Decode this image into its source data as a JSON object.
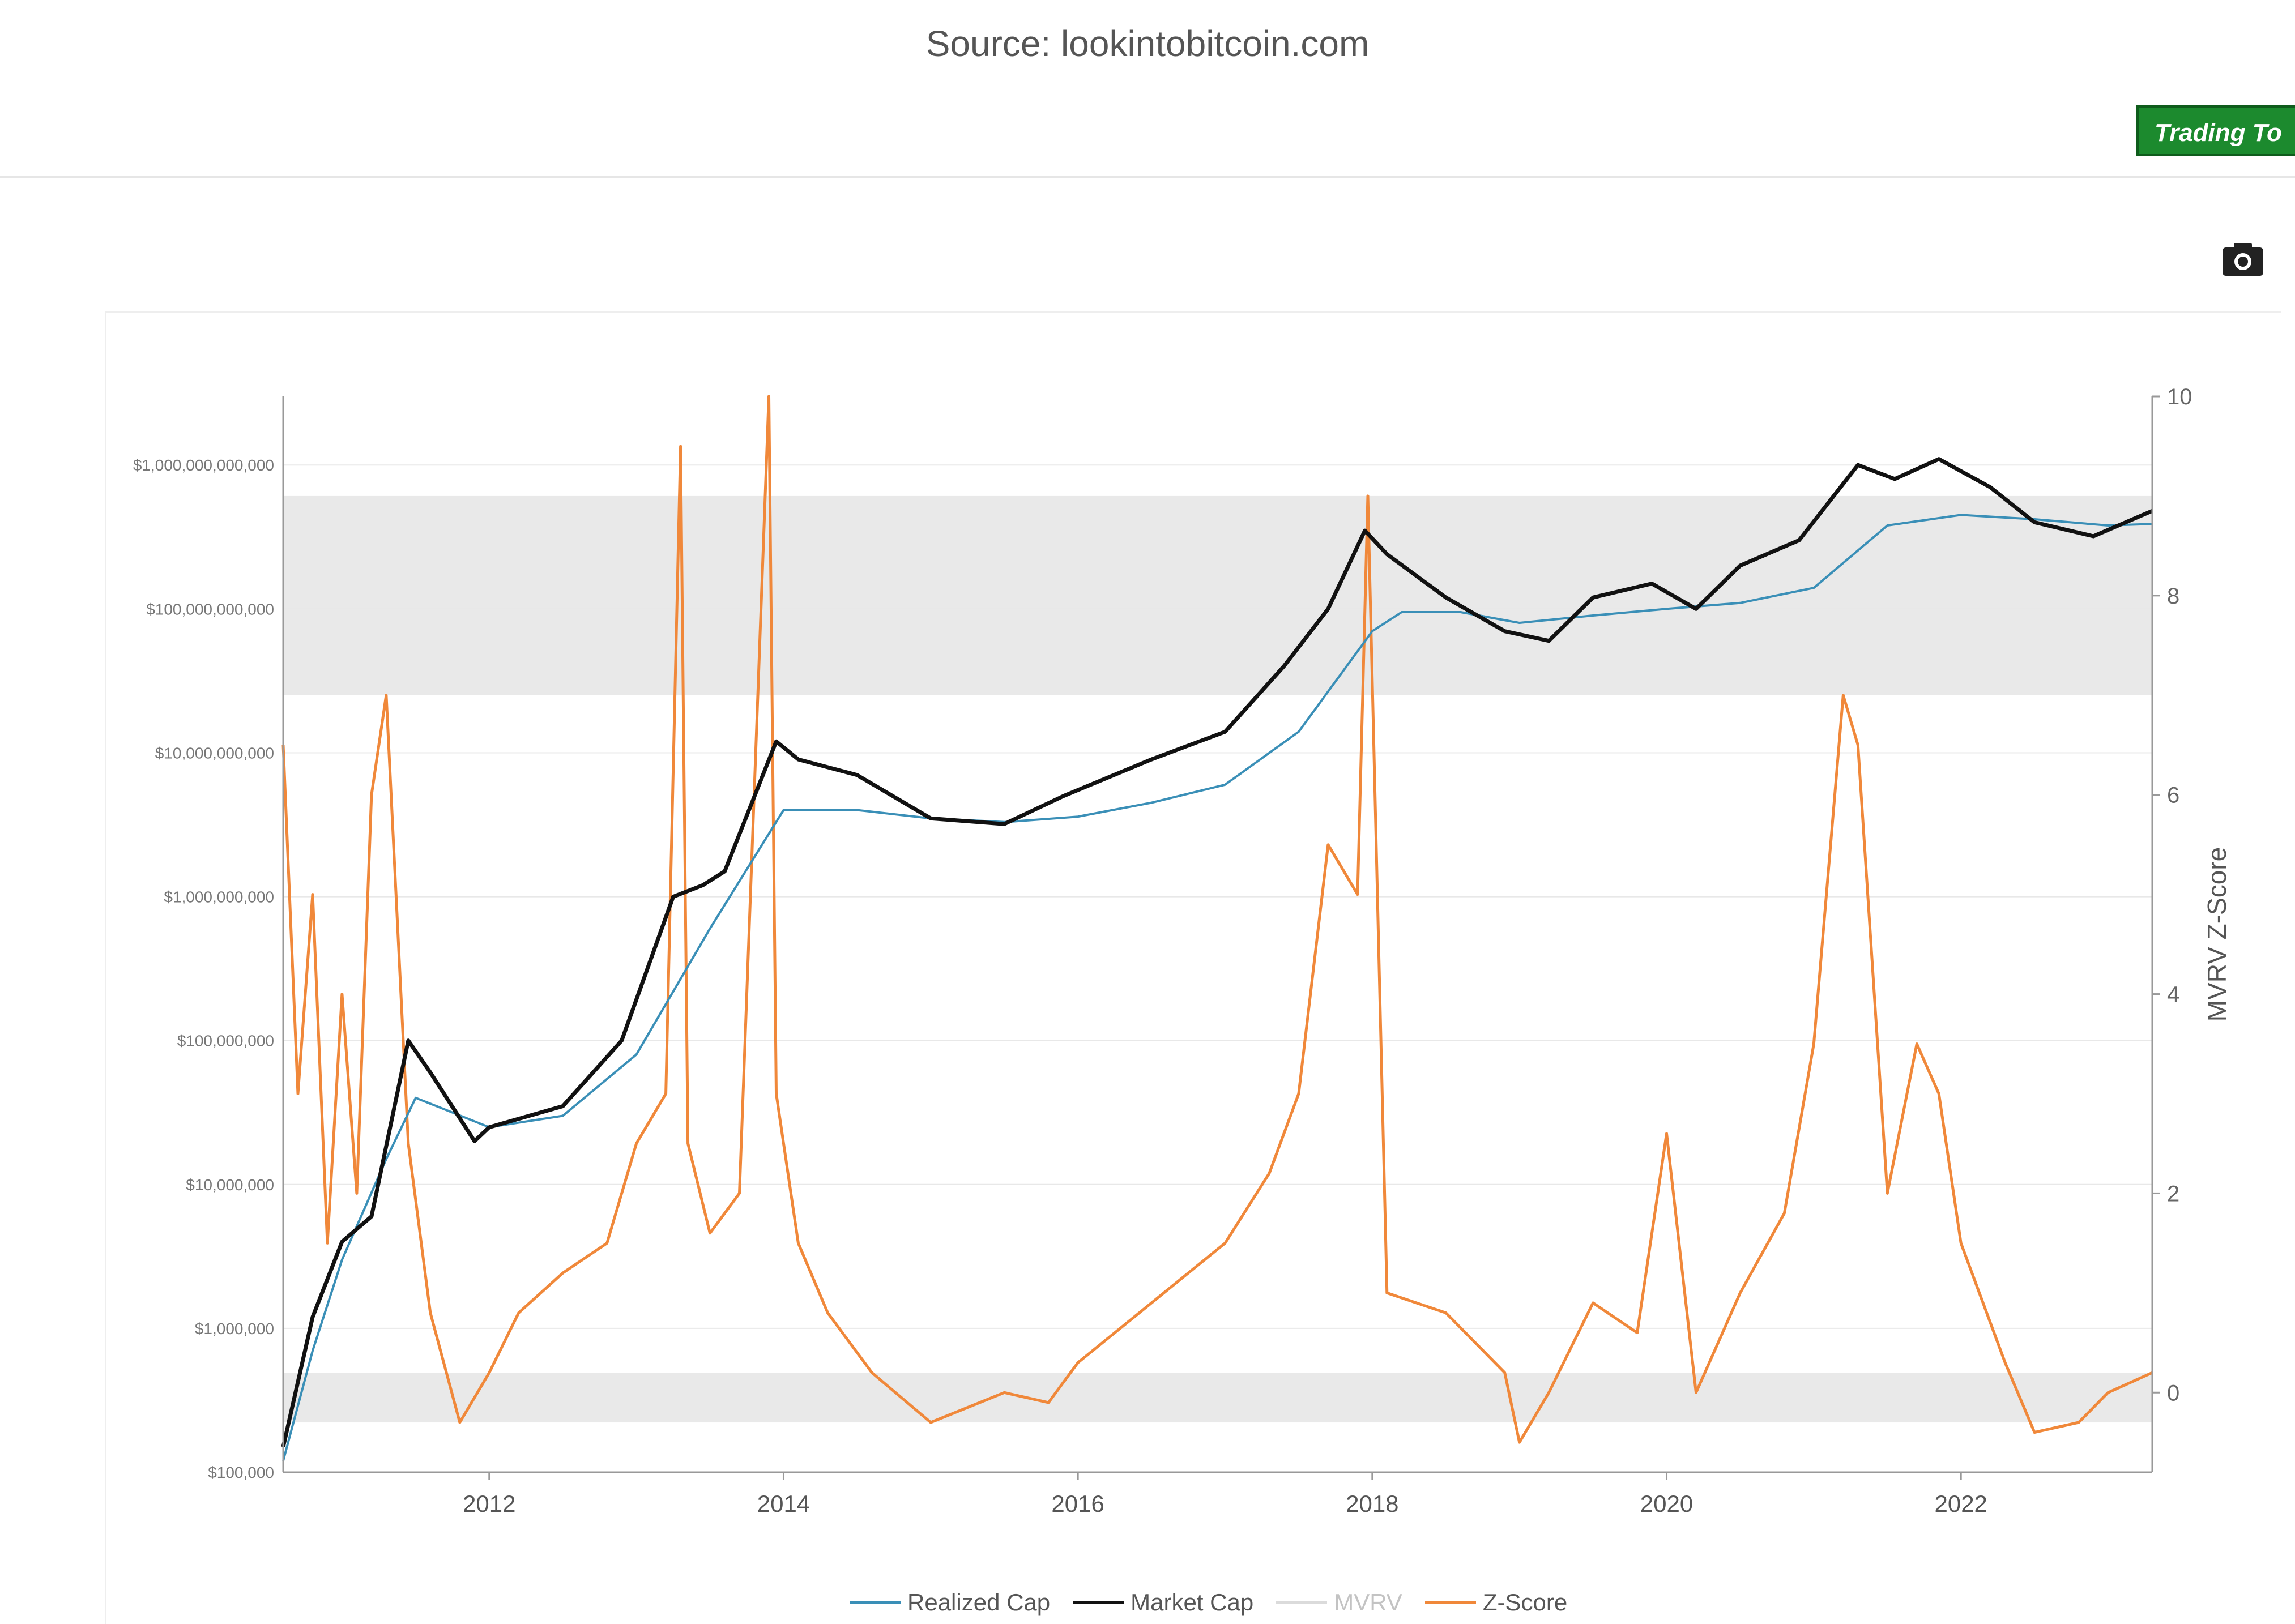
{
  "header": {
    "source_text": "Source: lookintobitcoin.com",
    "trading_button_label": "Trading To",
    "camera_icon": "camera-icon"
  },
  "colors": {
    "market_cap": "#111111",
    "realized_cap": "#3a8fb7",
    "z_score": "#f0883a",
    "band": "#e2e2e2"
  },
  "chart_data": {
    "type": "line",
    "title": "",
    "xlabel": "",
    "ylabel_left": "",
    "ylabel_right": "MVRV Z-Score",
    "x_ticks": [
      "2012",
      "2014",
      "2016",
      "2018",
      "2020",
      "2022"
    ],
    "xlim": [
      2010.6,
      2023.3
    ],
    "y_left_scale": "log",
    "y_left_ticks": [
      "$100,000",
      "$1,000,000",
      "$10,000,000",
      "$100,000,000",
      "$1,000,000,000",
      "$10,000,000,000",
      "$100,000,000,000",
      "$1,000,000,000,000"
    ],
    "y_left_range": [
      100000,
      3000000000000
    ],
    "y_right_ticks": [
      "0",
      "2",
      "4",
      "6",
      "8",
      "10"
    ],
    "y_right_range": [
      -0.8,
      10
    ],
    "bands": [
      {
        "axis": "right",
        "from": 7.0,
        "to": 9.0
      },
      {
        "axis": "right",
        "from": -0.3,
        "to": 0.2
      }
    ],
    "legend": [
      "Realized Cap",
      "Market Cap",
      "MVRV",
      "Z-Score"
    ],
    "legend_position": "bottom",
    "series": [
      {
        "name": "Market Cap",
        "x": [
          2010.6,
          2010.8,
          2011.0,
          2011.2,
          2011.45,
          2011.6,
          2011.9,
          2012.0,
          2012.5,
          2012.9,
          2013.25,
          2013.45,
          2013.6,
          2013.95,
          2014.1,
          2014.5,
          2015.0,
          2015.5,
          2015.9,
          2016.5,
          2017.0,
          2017.4,
          2017.7,
          2017.95,
          2018.1,
          2018.5,
          2018.9,
          2019.2,
          2019.5,
          2019.9,
          2020.2,
          2020.5,
          2020.9,
          2021.3,
          2021.55,
          2021.85,
          2022.2,
          2022.5,
          2022.9,
          2023.3
        ],
        "y": [
          150000,
          1200000,
          4000000,
          6000000,
          100000000,
          60000000,
          20000000,
          25000000,
          35000000,
          100000000,
          1000000000,
          1200000000,
          1500000000,
          12000000000,
          9000000000,
          7000000000,
          3500000000,
          3200000000,
          5000000000,
          9000000000,
          14000000000,
          40000000000,
          100000000000,
          350000000000,
          240000000000,
          120000000000,
          70000000000,
          60000000000,
          120000000000,
          150000000000,
          100000000000,
          200000000000,
          300000000000,
          1000000000000,
          800000000000,
          1100000000000,
          700000000000,
          400000000000,
          320000000000,
          480000000000
        ]
      },
      {
        "name": "Realized Cap",
        "x": [
          2010.6,
          2010.8,
          2011.0,
          2011.3,
          2011.5,
          2012.0,
          2012.5,
          2013.0,
          2013.5,
          2014.0,
          2014.5,
          2015.0,
          2015.5,
          2016.0,
          2016.5,
          2017.0,
          2017.5,
          2018.0,
          2018.2,
          2018.6,
          2019.0,
          2019.5,
          2020.0,
          2020.5,
          2021.0,
          2021.5,
          2022.0,
          2022.5,
          2023.0,
          2023.3
        ],
        "y": [
          120000,
          700000,
          3000000,
          15000000,
          40000000,
          25000000,
          30000000,
          80000000,
          600000000,
          4000000000,
          4000000000,
          3500000000,
          3300000000,
          3600000000,
          4500000000,
          6000000000,
          14000000000,
          70000000000,
          95000000000,
          95000000000,
          80000000000,
          90000000000,
          100000000000,
          110000000000,
          140000000000,
          380000000000,
          450000000000,
          420000000000,
          380000000000,
          390000000000
        ]
      },
      {
        "name": "Z-Score",
        "axis": "right",
        "x": [
          2010.6,
          2010.7,
          2010.8,
          2010.9,
          2011.0,
          2011.1,
          2011.2,
          2011.3,
          2011.45,
          2011.6,
          2011.8,
          2012.0,
          2012.2,
          2012.5,
          2012.8,
          2013.0,
          2013.2,
          2013.3,
          2013.35,
          2013.5,
          2013.7,
          2013.9,
          2013.95,
          2014.1,
          2014.3,
          2014.6,
          2015.0,
          2015.5,
          2015.8,
          2016.0,
          2016.5,
          2017.0,
          2017.3,
          2017.5,
          2017.7,
          2017.9,
          2017.97,
          2018.1,
          2018.5,
          2018.9,
          2019.0,
          2019.2,
          2019.5,
          2019.8,
          2020.0,
          2020.2,
          2020.5,
          2020.8,
          2021.0,
          2021.2,
          2021.3,
          2021.5,
          2021.7,
          2021.85,
          2022.0,
          2022.3,
          2022.5,
          2022.8,
          2023.0,
          2023.3
        ],
        "y": [
          6.5,
          3.0,
          5.0,
          1.5,
          4.0,
          2.0,
          6.0,
          7.0,
          2.5,
          0.8,
          -0.3,
          0.2,
          0.8,
          1.2,
          1.5,
          2.5,
          3.0,
          9.5,
          2.5,
          1.6,
          2.0,
          10.0,
          3.0,
          1.5,
          0.8,
          0.2,
          -0.3,
          0.0,
          -0.1,
          0.3,
          0.9,
          1.5,
          2.2,
          3.0,
          5.5,
          5.0,
          9.0,
          1.0,
          0.8,
          0.2,
          -0.5,
          0.0,
          0.9,
          0.6,
          2.6,
          0.0,
          1.0,
          1.8,
          3.5,
          7.0,
          6.5,
          2.0,
          3.5,
          3.0,
          1.5,
          0.3,
          -0.4,
          -0.3,
          0.0,
          0.2
        ]
      },
      {
        "name": "MVRV",
        "axis": "right",
        "x": [],
        "y": []
      }
    ]
  }
}
